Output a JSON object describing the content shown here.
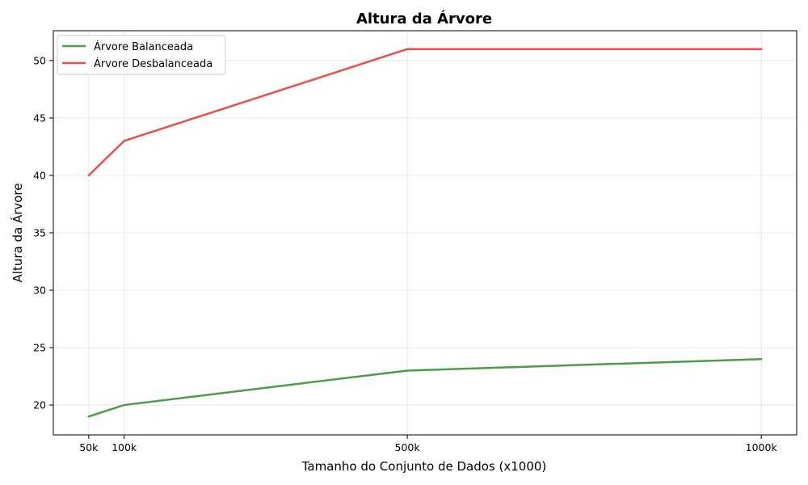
{
  "chart_data": {
    "type": "line",
    "title": "Altura da Árvore",
    "xlabel": "Tamanho do Conjunto de Dados (x1000)",
    "ylabel": "Altura da Árvore",
    "x": [
      50,
      100,
      500,
      1000
    ],
    "x_tick_labels": [
      "50k",
      "100k",
      "500k",
      "1000k"
    ],
    "y_ticks": [
      20,
      25,
      30,
      35,
      40,
      45,
      50
    ],
    "xlim": [
      0,
      1050
    ],
    "ylim": [
      17.4,
      52.6
    ],
    "grid": true,
    "legend_position": "top-left",
    "series": [
      {
        "name": "Árvore Balanceada",
        "color": "#4a9e4a",
        "values": [
          19,
          20,
          23,
          24
        ]
      },
      {
        "name": "Árvore Desbalanceada",
        "color": "#ee4d4d",
        "values": [
          40,
          43,
          51,
          51
        ]
      }
    ]
  }
}
